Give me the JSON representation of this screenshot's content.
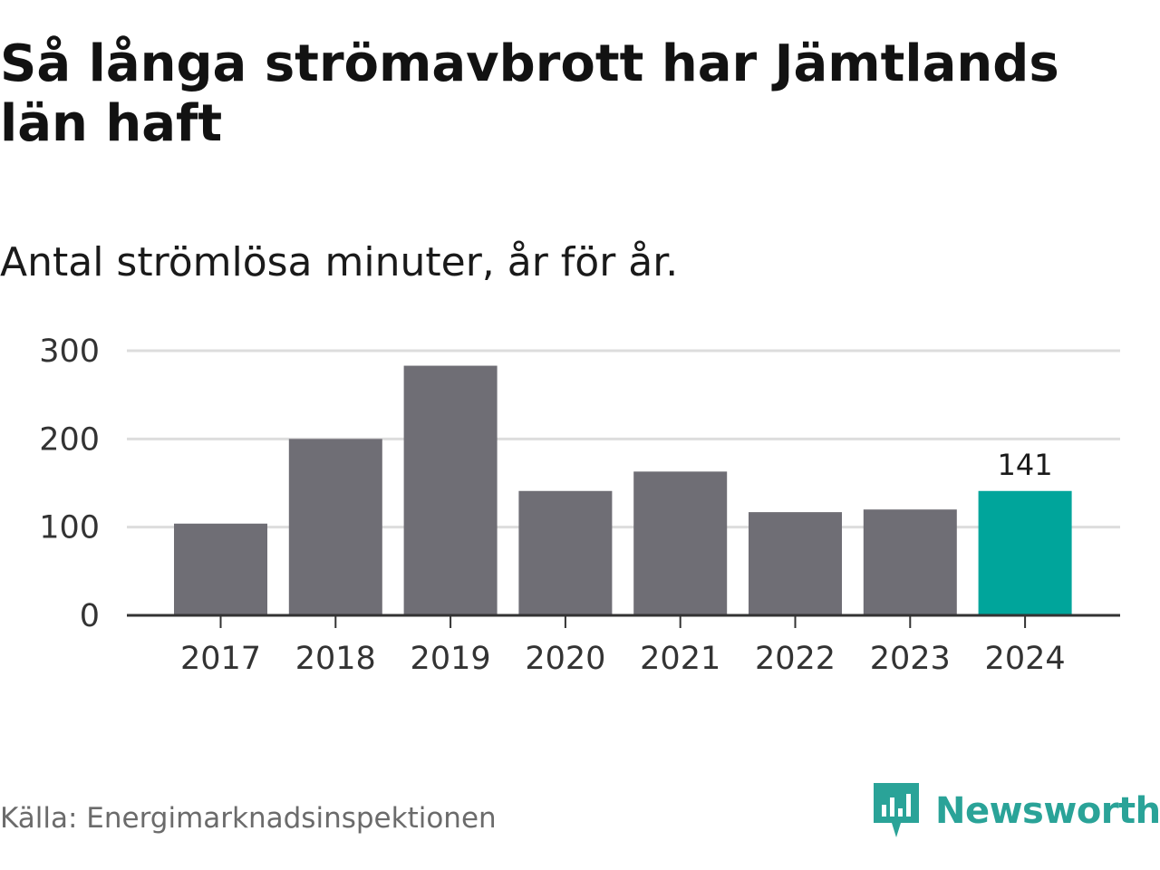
{
  "title": "Så långa strömavbrott har Jämtlands län haft",
  "subtitle": "Antal strömlösa minuter, år för år.",
  "source": "Källa: Energimarknadsinspektionen",
  "brand": {
    "name": "Newsworthy",
    "icon": "newsworthy-logo-icon",
    "color": "#2aa398"
  },
  "colors": {
    "bar": "#6f6e75",
    "highlight": "#00a59b",
    "grid": "#dddddd",
    "axis": "#333333"
  },
  "chart_data": {
    "type": "bar",
    "title": "Så långa strömavbrott har Jämtlands län haft",
    "subtitle": "Antal strömlösa minuter, år för år.",
    "xlabel": "",
    "ylabel": "",
    "categories": [
      "2017",
      "2018",
      "2019",
      "2020",
      "2021",
      "2022",
      "2023",
      "2024"
    ],
    "values": [
      104,
      200,
      283,
      141,
      163,
      117,
      120,
      141
    ],
    "ylim": [
      0,
      300
    ],
    "yticks": [
      0,
      100,
      200,
      300
    ],
    "ytick_labels": [
      "0",
      "100",
      "200",
      "300"
    ],
    "grid": true,
    "highlight_index": 7,
    "data_labels": [
      {
        "category": "2024",
        "text": "141"
      }
    ]
  }
}
